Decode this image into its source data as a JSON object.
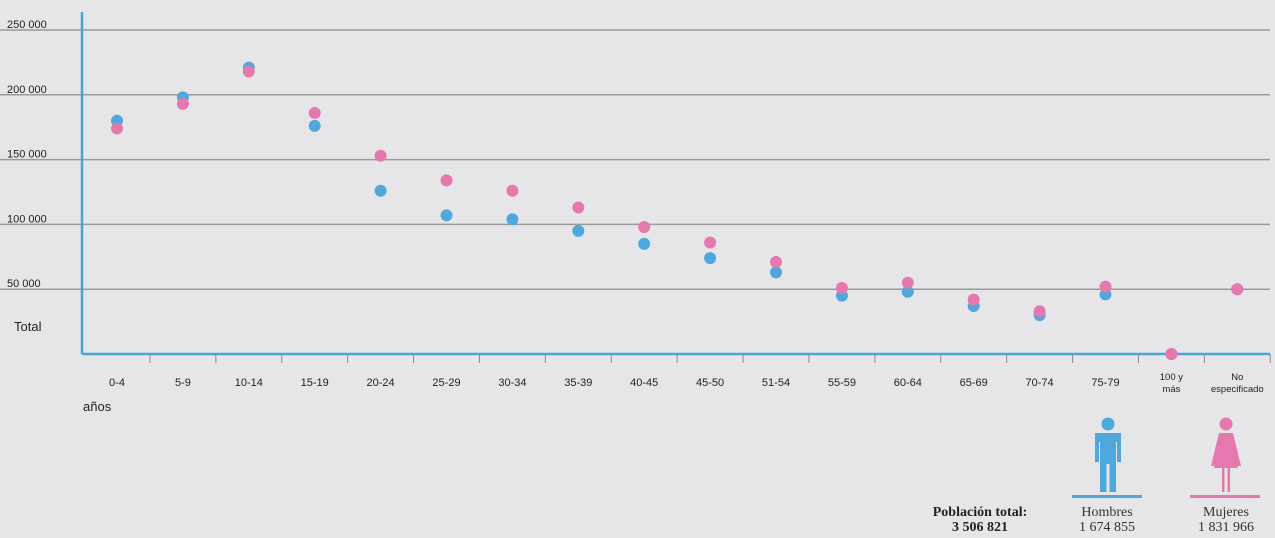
{
  "chart_data": {
    "type": "scatter",
    "categories": [
      "0-4",
      "5-9",
      "10-14",
      "15-19",
      "20-24",
      "25-29",
      "30-34",
      "35-39",
      "40-45",
      "45-50",
      "51-54",
      "55-59",
      "60-64",
      "65-69",
      "70-74",
      "75-79",
      "100 y más",
      "No especificado"
    ],
    "category_lines": [
      [
        "0-4"
      ],
      [
        "5-9"
      ],
      [
        "10-14"
      ],
      [
        "15-19"
      ],
      [
        "20-24"
      ],
      [
        "25-29"
      ],
      [
        "30-34"
      ],
      [
        "35-39"
      ],
      [
        "40-45"
      ],
      [
        "45-50"
      ],
      [
        "51-54"
      ],
      [
        "55-59"
      ],
      [
        "60-64"
      ],
      [
        "65-69"
      ],
      [
        "70-74"
      ],
      [
        "75-79"
      ],
      [
        "100 y",
        "más"
      ],
      [
        "No",
        "especificado"
      ]
    ],
    "yticks": [
      "250 000",
      "200 000",
      "150 000",
      "100 000",
      "50 000"
    ],
    "ylim": [
      0,
      250000
    ],
    "ylabel": "Total",
    "xlabel": "años",
    "grid": true,
    "series": [
      {
        "key": "hombres",
        "color": "#4fa8dc",
        "values": [
          180000,
          198000,
          221000,
          176000,
          126000,
          107000,
          104000,
          95000,
          85000,
          74000,
          63000,
          45000,
          48000,
          37000,
          30000,
          46000,
          0,
          50000
        ]
      },
      {
        "key": "mujeres",
        "color": "#e579ad",
        "values": [
          174000,
          193000,
          218000,
          186000,
          153000,
          134000,
          126000,
          113000,
          98000,
          86000,
          71000,
          51000,
          55000,
          42000,
          33000,
          52000,
          0,
          50000
        ]
      }
    ]
  },
  "legend": {
    "total_label": "Población total:",
    "total_value": "3 506 821",
    "men_label": "Hombres",
    "men_value": "1 674 855",
    "women_label": "Mujeres",
    "women_value": "1 831 966",
    "men_icon": "male-person-icon",
    "women_icon": "female-person-icon",
    "men_color": "#4fa8dc",
    "women_color": "#e579ad"
  },
  "colors": {
    "axis": "#4aa3d8",
    "grid": "#9a9a9a",
    "background": "#e6e6e9"
  }
}
